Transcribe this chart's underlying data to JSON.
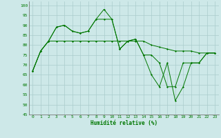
{
  "xlabel": "Humidité relative (%)",
  "background_color": "#cde8e8",
  "line_color": "#007700",
  "grid_color": "#aacccc",
  "xlim": [
    -0.5,
    23.5
  ],
  "ylim": [
    45,
    102
  ],
  "yticks": [
    45,
    50,
    55,
    60,
    65,
    70,
    75,
    80,
    85,
    90,
    95,
    100
  ],
  "xticks": [
    0,
    1,
    2,
    3,
    4,
    5,
    6,
    7,
    8,
    9,
    10,
    11,
    12,
    13,
    14,
    15,
    16,
    17,
    18,
    19,
    20,
    21,
    22,
    23
  ],
  "series1": [
    67,
    77,
    82,
    89,
    90,
    87,
    86,
    87,
    93,
    98,
    93,
    78,
    82,
    83,
    75,
    65,
    59,
    71,
    52,
    59,
    71,
    71,
    76,
    76
  ],
  "series2": [
    67,
    77,
    82,
    89,
    90,
    87,
    86,
    87,
    93,
    93,
    93,
    78,
    82,
    83,
    75,
    75,
    71,
    59,
    59,
    71,
    71,
    71,
    76,
    76
  ],
  "series3": [
    67,
    77,
    82,
    82,
    82,
    82,
    82,
    82,
    82,
    82,
    82,
    82,
    82,
    82,
    82,
    80,
    79,
    78,
    77,
    77,
    77,
    76,
    76,
    76
  ]
}
